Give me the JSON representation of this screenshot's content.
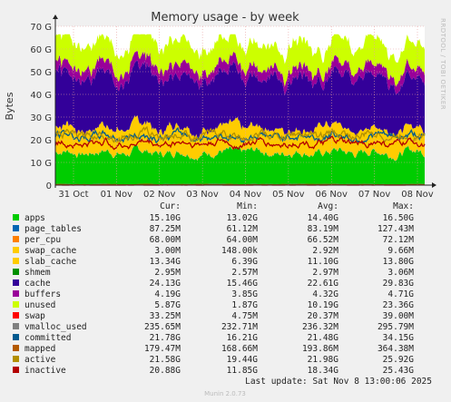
{
  "chart_data": {
    "type": "area",
    "title": "Memory usage - by week",
    "ylabel": "Bytes",
    "side_label": "RRDTOOL / TOBI OETIKER",
    "y_ticks": [
      "0",
      "10 G",
      "20 G",
      "30 G",
      "40 G",
      "50 G",
      "60 G",
      "70 G"
    ],
    "ylim": [
      0,
      70
    ],
    "y_unit": "G",
    "categories": [
      "31 Oct",
      "01 Nov",
      "02 Nov",
      "03 Nov",
      "04 Nov",
      "05 Nov",
      "06 Nov",
      "07 Nov",
      "08 Nov"
    ],
    "grid": true,
    "legend_headers": [
      "Cur:",
      "Min:",
      "Avg:",
      "Max:"
    ],
    "series": [
      {
        "name": "apps",
        "color": "#00cc00",
        "kind": "area",
        "cur": "15.10G",
        "min": "13.02G",
        "avg": "14.40G",
        "max": "16.50G",
        "level": 14.4
      },
      {
        "name": "page_tables",
        "color": "#0066b3",
        "kind": "area",
        "cur": "87.25M",
        "min": "61.12M",
        "avg": "83.19M",
        "max": "127.43M",
        "level": 0.08
      },
      {
        "name": "per_cpu",
        "color": "#ff8000",
        "kind": "area",
        "cur": "68.00M",
        "min": "64.00M",
        "avg": "66.52M",
        "max": "72.12M",
        "level": 0.07
      },
      {
        "name": "swap_cache",
        "color": "#ffcc00",
        "kind": "area",
        "cur": "3.00M",
        "min": "148.00k",
        "avg": "2.92M",
        "max": "9.66M",
        "level": 0.0
      },
      {
        "name": "slab_cache",
        "color": "#ffcc00",
        "kind": "area",
        "cur": "13.34G",
        "min": "6.39G",
        "avg": "11.10G",
        "max": "13.80G",
        "level": 11.1
      },
      {
        "name": "shmem",
        "color": "#008f00",
        "kind": "area",
        "cur": "2.95M",
        "min": "2.57M",
        "avg": "2.97M",
        "max": "3.06M",
        "level": 0.0
      },
      {
        "name": "cache",
        "color": "#330099",
        "kind": "area",
        "cur": "24.13G",
        "min": "15.46G",
        "avg": "22.61G",
        "max": "29.83G",
        "level": 22.6
      },
      {
        "name": "buffers",
        "color": "#990099",
        "kind": "area",
        "cur": "4.19G",
        "min": "3.85G",
        "avg": "4.32G",
        "max": "4.71G",
        "level": 4.32
      },
      {
        "name": "unused",
        "color": "#ccff00",
        "kind": "area",
        "cur": "5.87G",
        "min": "1.87G",
        "avg": "10.19G",
        "max": "23.36G",
        "level": 10.2
      },
      {
        "name": "swap",
        "color": "#ff0000",
        "kind": "line",
        "cur": "33.25M",
        "min": "4.75M",
        "avg": "20.37M",
        "max": "39.00M",
        "level": 0.02
      },
      {
        "name": "vmalloc_used",
        "color": "#808080",
        "kind": "line",
        "cur": "235.65M",
        "min": "232.71M",
        "avg": "236.32M",
        "max": "295.79M",
        "level": 0.24
      },
      {
        "name": "committed",
        "color": "#005a8f",
        "kind": "line",
        "cur": "21.78G",
        "min": "16.21G",
        "avg": "21.48G",
        "max": "34.15G",
        "level": 21.5
      },
      {
        "name": "mapped",
        "color": "#b35a00",
        "kind": "line",
        "cur": "179.47M",
        "min": "168.66M",
        "avg": "193.86M",
        "max": "364.38M",
        "level": 0.19
      },
      {
        "name": "active",
        "color": "#b38f00",
        "kind": "line",
        "cur": "21.58G",
        "min": "19.44G",
        "avg": "21.98G",
        "max": "25.92G",
        "level": 22.0
      },
      {
        "name": "inactive",
        "color": "#b30000",
        "kind": "line",
        "cur": "20.88G",
        "min": "11.85G",
        "avg": "18.34G",
        "max": "25.43G",
        "level": 18.3
      }
    ],
    "footer": "Last update:  Sat Nov  8 13:00:06 2025",
    "generator": "Munin 2.0.73"
  }
}
